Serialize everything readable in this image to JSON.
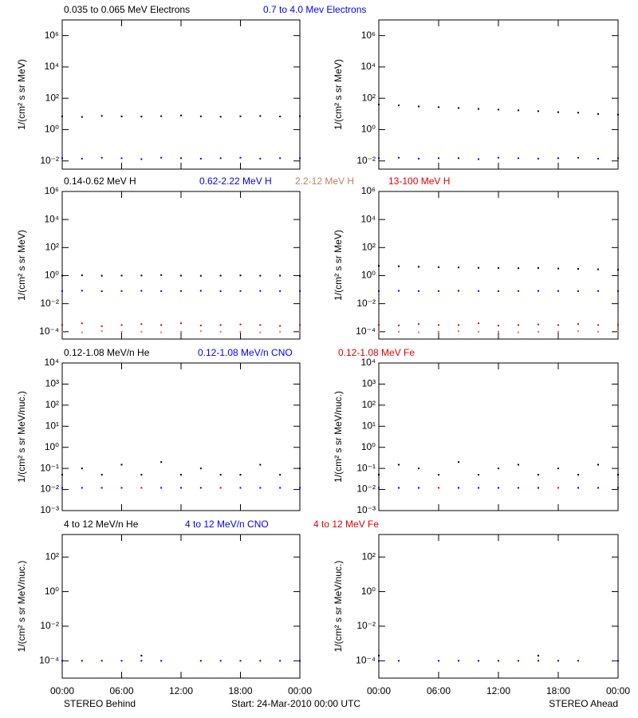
{
  "footer": {
    "left": "STEREO Behind",
    "center": "Start: 24-Mar-2010 00:00 UTC",
    "right": "STEREO Ahead"
  },
  "chart_data": [
    {
      "type": "scatter",
      "y_label": "1/(cm² s sr MeV)",
      "log_y": true,
      "xlim": [
        0,
        24
      ],
      "xticks": [
        0,
        6,
        12,
        18,
        24
      ],
      "ylim": [
        0.003,
        10000000
      ],
      "yticks": [
        {
          "value": 0.01,
          "label": "10⁻²"
        },
        {
          "value": 1,
          "label": "10⁰"
        },
        {
          "value": 100,
          "label": "10²"
        },
        {
          "value": 10000,
          "label": "10⁴"
        },
        {
          "value": 1000000,
          "label": "10⁶"
        }
      ],
      "x": [
        0,
        2,
        4,
        6,
        8,
        10,
        12,
        14,
        16,
        18,
        20,
        22,
        24
      ],
      "series": [
        {
          "name": "0.035 to 0.065 MeV Electrons",
          "color": "#000000",
          "values": [
            7,
            6.5,
            7.5,
            7,
            6.8,
            7.2,
            8,
            7,
            6.6,
            7.1,
            7.4,
            6.9,
            7.2
          ]
        },
        {
          "name": "0.7 to 4.0 Mev Electrons",
          "color": "#0000ff",
          "values": [
            0.015,
            0.014,
            0.016,
            0.015,
            0.013,
            0.016,
            0.015,
            0.014,
            0.015,
            0.016,
            0.014,
            0.015,
            0.015
          ]
        }
      ]
    },
    {
      "type": "scatter",
      "y_label": "1/(cm² s sr MeV)",
      "log_y": true,
      "xlim": [
        0,
        24
      ],
      "xticks": [
        0,
        6,
        12,
        18,
        24
      ],
      "ylim": [
        0.003,
        10000000
      ],
      "yticks": [
        {
          "value": 0.01,
          "label": "10⁻²"
        },
        {
          "value": 1,
          "label": "10⁰"
        },
        {
          "value": 100,
          "label": "10²"
        },
        {
          "value": 10000,
          "label": "10⁴"
        },
        {
          "value": 1000000,
          "label": "10⁶"
        }
      ],
      "x": [
        0,
        2,
        4,
        6,
        8,
        10,
        12,
        14,
        16,
        18,
        20,
        22,
        24
      ],
      "series": [
        {
          "color": "#000000",
          "values": [
            40,
            35,
            30,
            27,
            24,
            21,
            19,
            17,
            15,
            13,
            12,
            10,
            9
          ]
        },
        {
          "color": "#0000ff",
          "values": [
            0.015,
            0.016,
            0.014,
            0.015,
            0.015,
            0.013,
            0.016,
            0.015,
            0.014,
            0.015,
            0.016,
            0.014,
            0.015
          ]
        }
      ]
    },
    {
      "type": "scatter",
      "y_label": "1/(cm² s sr MeV)",
      "log_y": true,
      "xlim": [
        0,
        24
      ],
      "xticks": [
        0,
        6,
        12,
        18,
        24
      ],
      "ylim": [
        3e-05,
        1000000
      ],
      "yticks": [
        {
          "value": 0.0001,
          "label": "10⁻⁴"
        },
        {
          "value": 0.01,
          "label": "10⁻²"
        },
        {
          "value": 1,
          "label": "10⁰"
        },
        {
          "value": 100,
          "label": "10²"
        },
        {
          "value": 10000,
          "label": "10⁴"
        },
        {
          "value": 1000000,
          "label": "10⁶"
        }
      ],
      "x": [
        0,
        2,
        4,
        6,
        8,
        10,
        12,
        14,
        16,
        18,
        20,
        22,
        24
      ],
      "series": [
        {
          "name": "0.14-0.62 MeV H",
          "color": "#000000",
          "values": [
            1.0,
            1.05,
            0.98,
            1.0,
            1.02,
            1.1,
            1.0,
            0.97,
            1.0,
            1.03,
            0.99,
            1.0,
            0.95
          ]
        },
        {
          "name": "0.62-2.22 MeV H",
          "color": "#0000ff",
          "values": [
            0.08,
            0.085,
            0.078,
            0.08,
            0.082,
            0.079,
            0.08,
            0.083,
            0.078,
            0.08,
            0.081,
            0.079,
            0.08
          ]
        },
        {
          "name": "2.2-12 MeV H",
          "color": "#c08060",
          "values": [
            0.0001,
            9e-05,
            0.00011,
            0.0001,
            0.0001,
            9e-05,
            0.0001,
            0.00011,
            0.0001,
            0.0001,
            9e-05,
            0.0001,
            0.0001
          ]
        },
        {
          "name": "13-100 MeV H",
          "color": "#e00000",
          "values": [
            0.0003,
            0.0004,
            0.00025,
            0.0003,
            0.00035,
            0.0003,
            0.0004,
            0.00028,
            0.0003,
            0.00033,
            0.0003,
            0.00026,
            0.0003
          ]
        }
      ]
    },
    {
      "type": "scatter",
      "y_label": "1/(cm² s sr MeV)",
      "log_y": true,
      "xlim": [
        0,
        24
      ],
      "xticks": [
        0,
        6,
        12,
        18,
        24
      ],
      "ylim": [
        3e-05,
        1000000
      ],
      "yticks": [
        {
          "value": 0.0001,
          "label": "10⁻⁴"
        },
        {
          "value": 0.01,
          "label": "10⁻²"
        },
        {
          "value": 1,
          "label": "10⁰"
        },
        {
          "value": 100,
          "label": "10²"
        },
        {
          "value": 10000,
          "label": "10⁴"
        },
        {
          "value": 1000000,
          "label": "10⁶"
        }
      ],
      "x": [
        0,
        2,
        4,
        6,
        8,
        10,
        12,
        14,
        16,
        18,
        20,
        22,
        24
      ],
      "series": [
        {
          "color": "#000000",
          "values": [
            5,
            4.6,
            4.3,
            4.0,
            3.8,
            3.6,
            3.5,
            3.4,
            3.5,
            3.2,
            3.0,
            2.8,
            2.6
          ]
        },
        {
          "color": "#0000ff",
          "values": [
            0.08,
            0.082,
            0.079,
            0.08,
            0.083,
            0.08,
            0.078,
            0.08,
            0.081,
            0.08,
            0.079,
            0.08,
            0.08
          ]
        },
        {
          "color": "#c08060",
          "values": [
            0.0001,
            0.0001,
            9e-05,
            0.0001,
            0.00011,
            0.0001,
            0.0001,
            9e-05,
            0.0001,
            0.0001,
            0.00011,
            0.0001,
            0.0001
          ]
        },
        {
          "color": "#e00000",
          "values": [
            0.0003,
            0.00028,
            0.00035,
            0.0003,
            0.0003,
            0.0004,
            0.00027,
            0.0003,
            0.00033,
            0.0003,
            0.00035,
            0.0003,
            0.0003
          ]
        }
      ]
    },
    {
      "type": "scatter",
      "y_label": "1/(cm² s sr MeV/nuc.)",
      "log_y": true,
      "xlim": [
        0,
        24
      ],
      "xticks": [
        0,
        6,
        12,
        18,
        24
      ],
      "ylim": [
        0.001,
        10000
      ],
      "yticks": [
        {
          "value": 0.001,
          "label": "10⁻³"
        },
        {
          "value": 0.01,
          "label": "10⁻²"
        },
        {
          "value": 0.1,
          "label": "10⁻¹"
        },
        {
          "value": 1,
          "label": "10⁰"
        },
        {
          "value": 10,
          "label": "10¹"
        },
        {
          "value": 100,
          "label": "10²"
        },
        {
          "value": 1000,
          "label": "10³"
        },
        {
          "value": 10000,
          "label": "10⁴"
        }
      ],
      "x": [
        0,
        2,
        4,
        6,
        8,
        10,
        12,
        14,
        16,
        18,
        20,
        22,
        24
      ],
      "series": [
        {
          "name": "0.12-1.08 MeV/n He",
          "color": "#000000",
          "values": [
            0.05,
            0.1,
            0.05,
            0.15,
            0.05,
            0.2,
            0.05,
            0.1,
            0.05,
            0.05,
            0.15,
            0.05,
            0.1
          ]
        },
        {
          "name": "0.12-1.08 MeV/n CNO",
          "color": "#0000ff",
          "values": [
            0.012,
            0.012,
            0.012,
            0.012,
            null,
            0.012,
            0.012,
            0.012,
            null,
            0.012,
            0.012,
            0.012,
            0.012
          ]
        },
        {
          "name": "0.12-1.08 MeV Fe",
          "color": "#e00000",
          "values": [
            null,
            null,
            null,
            null,
            0.012,
            null,
            null,
            null,
            0.012,
            null,
            null,
            null,
            null
          ]
        }
      ]
    },
    {
      "type": "scatter",
      "y_label": "1/(cm² s sr MeV/nuc.)",
      "log_y": true,
      "xlim": [
        0,
        24
      ],
      "xticks": [
        0,
        6,
        12,
        18,
        24
      ],
      "ylim": [
        0.001,
        10000
      ],
      "yticks": [
        {
          "value": 0.001,
          "label": "10⁻³"
        },
        {
          "value": 0.01,
          "label": "10⁻²"
        },
        {
          "value": 0.1,
          "label": "10⁻¹"
        },
        {
          "value": 1,
          "label": "10⁰"
        },
        {
          "value": 10,
          "label": "10¹"
        },
        {
          "value": 100,
          "label": "10²"
        },
        {
          "value": 1000,
          "label": "10³"
        },
        {
          "value": 10000,
          "label": "10⁴"
        }
      ],
      "x": [
        0,
        2,
        4,
        6,
        8,
        10,
        12,
        14,
        16,
        18,
        20,
        22,
        24
      ],
      "series": [
        {
          "color": "#000000",
          "values": [
            0.05,
            0.15,
            0.1,
            0.05,
            0.2,
            0.05,
            0.1,
            0.15,
            0.05,
            0.1,
            0.05,
            0.15,
            0.05
          ]
        },
        {
          "color": "#0000ff",
          "values": [
            0.012,
            0.012,
            0.012,
            null,
            0.012,
            0.012,
            0.012,
            0.012,
            0.012,
            null,
            0.012,
            0.012,
            0.012
          ]
        },
        {
          "color": "#e00000",
          "values": [
            null,
            null,
            null,
            0.012,
            null,
            null,
            null,
            null,
            null,
            0.012,
            null,
            null,
            null
          ]
        }
      ]
    },
    {
      "type": "scatter",
      "y_label": "1/(cm² s sr MeV/nuc.)",
      "log_y": true,
      "xlim": [
        0,
        24
      ],
      "xticks": [
        {
          "value": 0,
          "label": "00:00"
        },
        {
          "value": 6,
          "label": "06:00"
        },
        {
          "value": 12,
          "label": "12:00"
        },
        {
          "value": 18,
          "label": "18:00"
        },
        {
          "value": 24,
          "label": "00:00"
        }
      ],
      "ylim": [
        1e-05,
        2000
      ],
      "yticks": [
        {
          "value": 0.0001,
          "label": "10⁻⁴"
        },
        {
          "value": 0.01,
          "label": "10⁻²"
        },
        {
          "value": 1,
          "label": "10⁰"
        },
        {
          "value": 100,
          "label": "10²"
        }
      ],
      "x": [
        0,
        2,
        4,
        6,
        8,
        10,
        12,
        14,
        16,
        18,
        20,
        22,
        24
      ],
      "series": [
        {
          "name": "4 to 12 MeV/n He",
          "color": "#000000",
          "values": [
            null,
            null,
            null,
            null,
            0.0002,
            null,
            null,
            null,
            null,
            null,
            null,
            null,
            null
          ]
        },
        {
          "name": "4 to 12 MeV/n CNO",
          "color": "#0000ff",
          "values": [
            0.0001,
            0.0001,
            0.0001,
            0.0001,
            0.0001,
            0.0001,
            null,
            0.0001,
            0.0001,
            0.0001,
            0.0001,
            0.0001,
            0.0001
          ]
        },
        {
          "name": "4 to 12 MeV Fe",
          "color": "#e00000",
          "values": [
            null,
            null,
            null,
            null,
            null,
            null,
            null,
            null,
            null,
            null,
            null,
            null,
            null
          ]
        }
      ]
    },
    {
      "type": "scatter",
      "y_label": "1/(cm² s sr MeV/nuc.)",
      "log_y": true,
      "xlim": [
        0,
        24
      ],
      "xticks": [
        {
          "value": 0,
          "label": "00:00"
        },
        {
          "value": 6,
          "label": "06:00"
        },
        {
          "value": 12,
          "label": "12:00"
        },
        {
          "value": 18,
          "label": "18:00"
        },
        {
          "value": 24,
          "label": "00:00"
        }
      ],
      "ylim": [
        1e-05,
        2000
      ],
      "yticks": [
        {
          "value": 0.0001,
          "label": "10⁻⁴"
        },
        {
          "value": 0.01,
          "label": "10⁻²"
        },
        {
          "value": 1,
          "label": "10⁰"
        },
        {
          "value": 100,
          "label": "10²"
        }
      ],
      "x": [
        0,
        2,
        4,
        6,
        8,
        10,
        12,
        14,
        16,
        18,
        20,
        22,
        24
      ],
      "series": [
        {
          "color": "#000000",
          "values": [
            0.0002,
            null,
            null,
            null,
            null,
            null,
            null,
            null,
            0.0002,
            null,
            null,
            null,
            null
          ]
        },
        {
          "color": "#0000ff",
          "values": [
            0.0001,
            0.0001,
            null,
            0.0001,
            0.0001,
            0.0001,
            0.0001,
            0.0001,
            0.0001,
            0.0001,
            0.0001,
            null,
            0.0001
          ]
        },
        {
          "color": "#e00000",
          "values": [
            null,
            null,
            null,
            null,
            null,
            null,
            null,
            null,
            null,
            null,
            null,
            null,
            null
          ]
        }
      ]
    }
  ]
}
